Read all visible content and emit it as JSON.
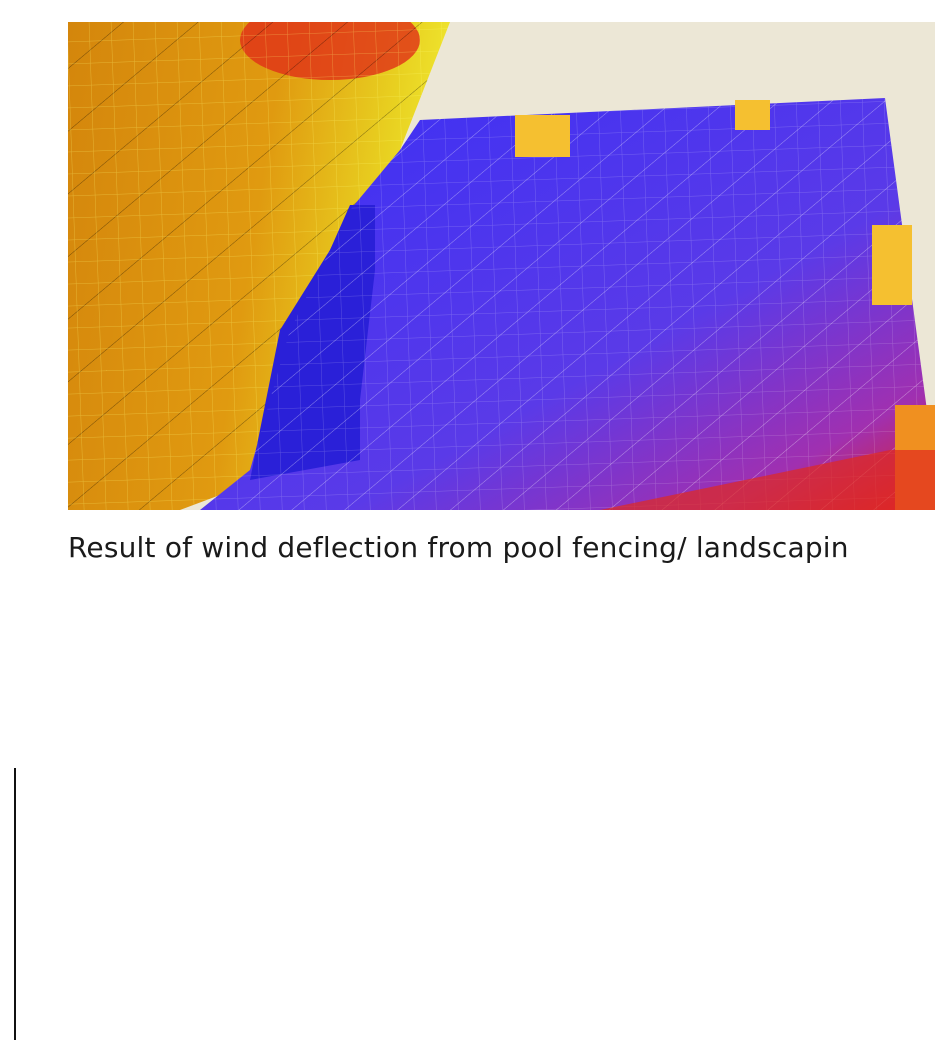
{
  "caption": "Result of wind deflection from pool fencing/ landscapin"
}
